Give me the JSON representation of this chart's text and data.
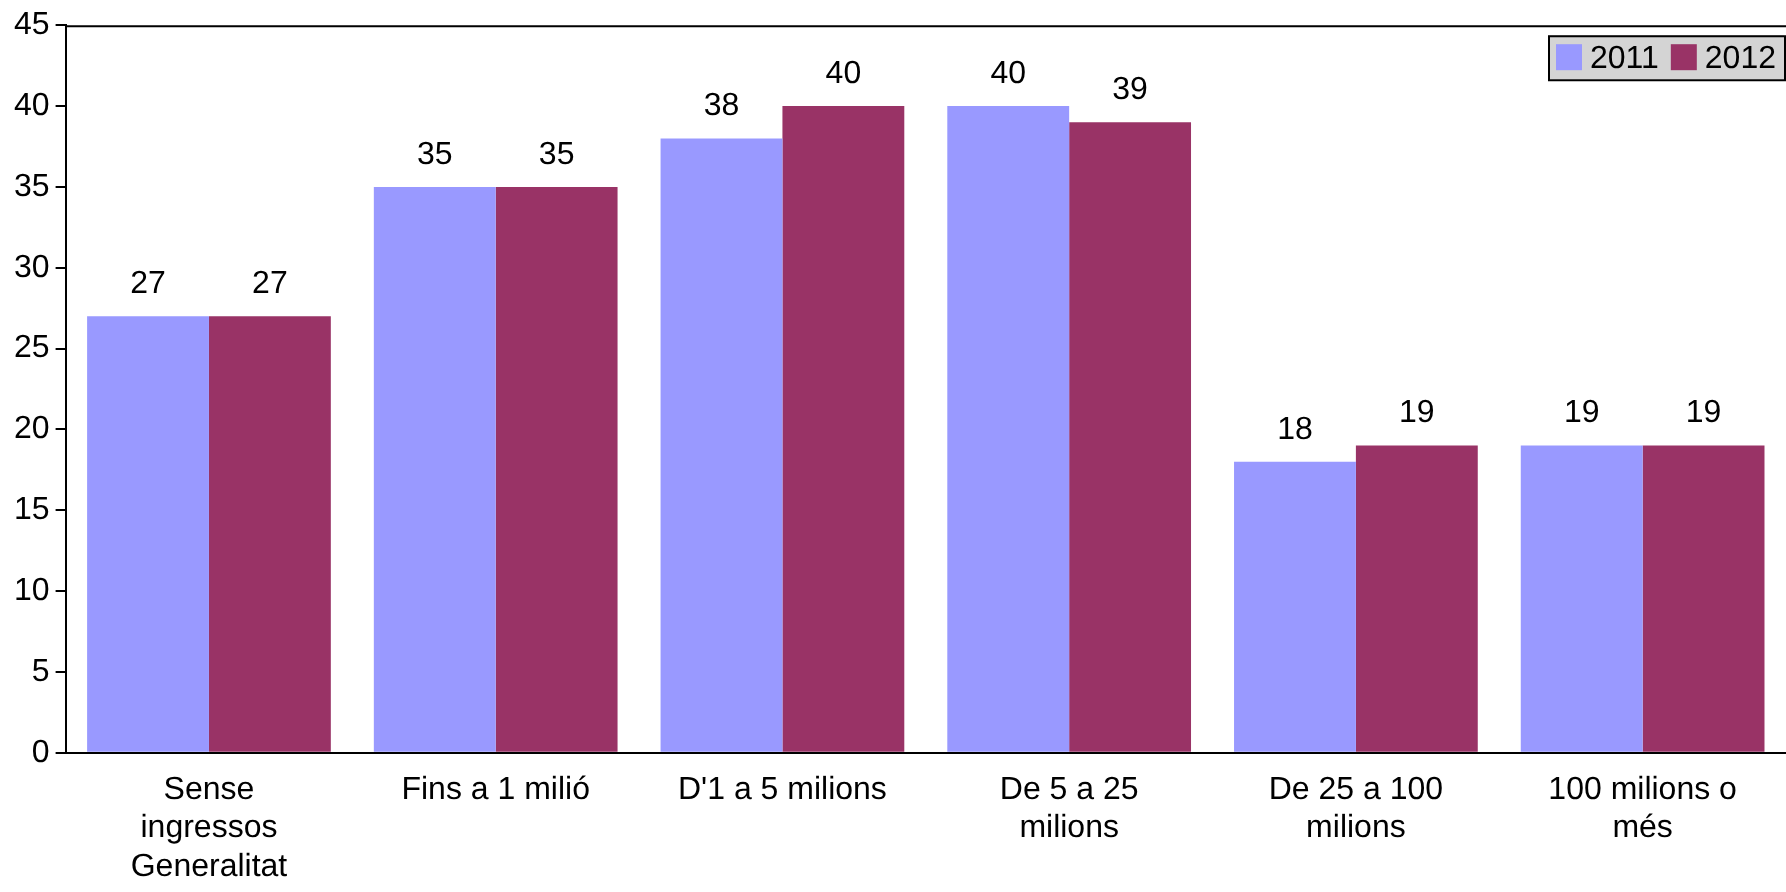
{
  "chart_data": {
    "type": "bar",
    "categories": [
      "Sense ingressos Generalitat",
      "Fins a 1 milió",
      "D'1 a 5 milions",
      "De 5 a 25 milions",
      "De 25 a 100 milions",
      "100 milions o més"
    ],
    "series": [
      {
        "name": "2011",
        "color": "#9999ff",
        "values": [
          27,
          35,
          38,
          40,
          18,
          19
        ]
      },
      {
        "name": "2012",
        "color": "#993366",
        "values": [
          27,
          35,
          40,
          39,
          19,
          19
        ]
      }
    ],
    "ylim": [
      0,
      45
    ],
    "yticks": [
      0,
      5,
      10,
      15,
      20,
      25,
      30,
      35,
      40,
      45
    ],
    "grid": false,
    "legend": "top right",
    "data_labels": true
  }
}
